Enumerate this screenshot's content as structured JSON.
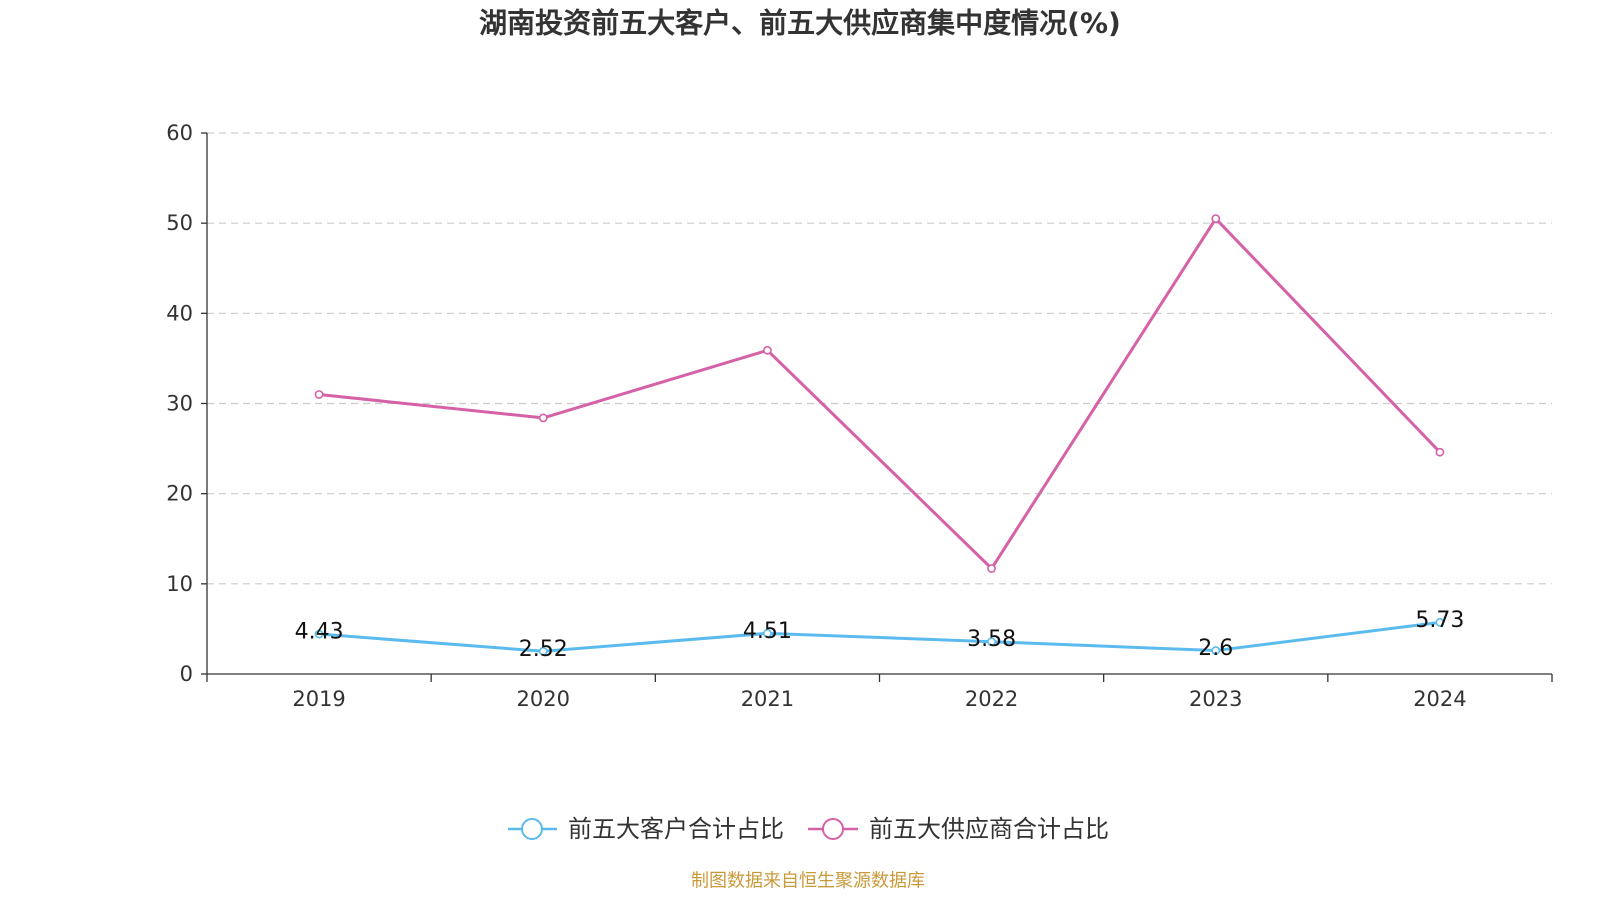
{
  "chart_data": {
    "type": "line",
    "title": "湖南投资前五大客户、前五大供应商集中度情况(%)",
    "categories": [
      "2019",
      "2020",
      "2021",
      "2022",
      "2023",
      "2024"
    ],
    "series": [
      {
        "name": "前五大客户合计占比",
        "values": [
          4.43,
          2.52,
          4.51,
          3.58,
          2.6,
          5.73
        ],
        "color": "#5bbbef",
        "show_labels": true
      },
      {
        "name": "前五大供应商合计占比",
        "values": [
          31.0,
          28.4,
          35.9,
          11.7,
          50.5,
          24.6
        ],
        "color": "#d561a6",
        "show_labels": false
      }
    ],
    "xlabel": "",
    "ylabel": "",
    "ylim": [
      0,
      60
    ],
    "yticks": [
      0,
      10,
      20,
      30,
      40,
      50,
      60
    ],
    "grid": true,
    "legend_position": "bottom"
  },
  "source": {
    "text": "制图数据来自恒生聚源数据库",
    "color": "#c99a3a"
  }
}
